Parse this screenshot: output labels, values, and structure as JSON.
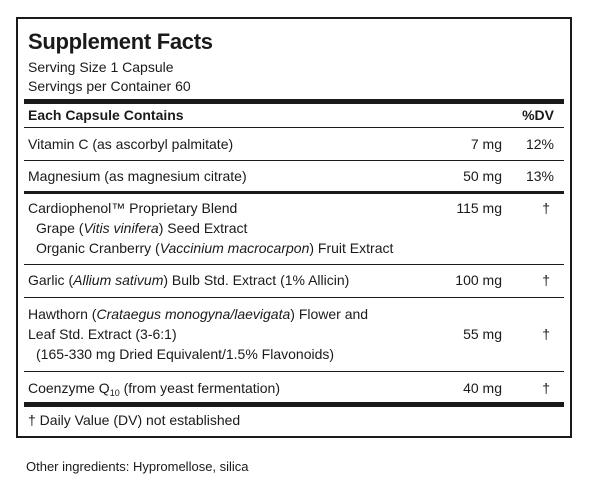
{
  "title": "Supplement Facts",
  "serving_size": "Serving Size 1 Capsule",
  "servings_per_container": "Servings per Container 60",
  "header": {
    "left": "Each Capsule Contains",
    "right": "%DV"
  },
  "rows": [
    {
      "name": "Vitamin C (as ascorbyl palmitate)",
      "amount": "7 mg",
      "dv": "12%"
    },
    {
      "name": "Magnesium (as magnesium citrate)",
      "amount": "50 mg",
      "dv": "13%"
    },
    {
      "name": "Cardiophenol™ Proprietary Blend",
      "amount": "115 mg",
      "dv": "†",
      "sub1_pre": "Grape (",
      "sub1_ital": "Vitis vinifera",
      "sub1_post": ") Seed Extract",
      "sub2_pre": "Organic Cranberry (",
      "sub2_ital": "Vaccinium macrocarpon",
      "sub2_post": ") Fruit Extract"
    },
    {
      "name_pre": "Garlic (",
      "name_ital": "Allium sativum",
      "name_post": ") Bulb Std. Extract (1% Allicin)",
      "amount": "100 mg",
      "dv": "†"
    },
    {
      "name_pre": "Hawthorn (",
      "name_ital": "Crataegus monogyna/laevigata",
      "name_post": ") Flower and",
      "line2": "Leaf Std. Extract (3-6:1)",
      "line3": "(165-330 mg Dried Equivalent/1.5% Flavonoids)",
      "amount": "55 mg",
      "dv": "†"
    },
    {
      "name_pre": "Coenzyme Q",
      "name_sub": "10",
      "name_post": " (from yeast fermentation)",
      "amount": "40 mg",
      "dv": "†"
    }
  ],
  "footnote": "† Daily Value (DV) not established",
  "other_ingredients": "Other ingredients: Hypromellose, silica"
}
